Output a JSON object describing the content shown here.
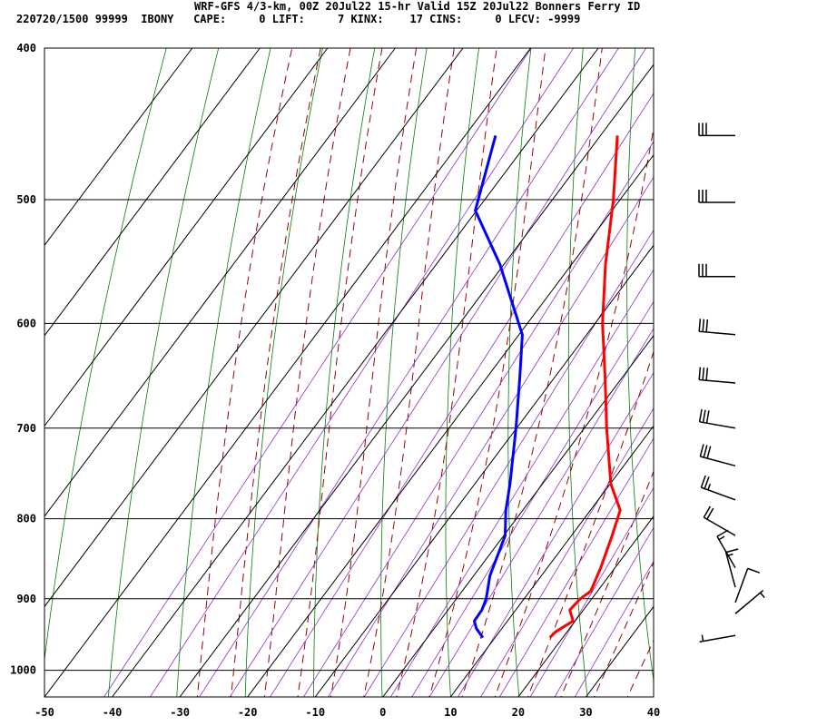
{
  "header": {
    "title": "WRF-GFS 4/3-km, 00Z 20Jul22 15-hr Valid 15Z 20Jul22 Bonners Ferry ID",
    "line2": "220720/1500 99999  IBONY   CAPE:     0 LIFT:     7 KINX:    17 CINS:     0 LFCV: -9999"
  },
  "chart_data": {
    "type": "line",
    "subtype": "skew-T log-P sounding",
    "title": "WRF-GFS 4/3-km, 00Z 20Jul22 15-hr Valid 15Z 20Jul22 Bonners Ferry ID",
    "xlabel": "",
    "ylabel": "",
    "x_axis": {
      "range": [
        -50,
        40
      ],
      "ticks": [
        -50,
        -40,
        -30,
        -20,
        -10,
        0,
        10,
        20,
        30,
        40
      ],
      "units": "deg C (skewed isotherms)"
    },
    "y_axis": {
      "range": [
        400,
        1040
      ],
      "scale": "log",
      "inverted": true,
      "ticks": [
        400,
        500,
        600,
        700,
        800,
        900,
        1000
      ],
      "units": "hPa"
    },
    "grid": true,
    "colors": {
      "temperature": "#ff0000",
      "dewpoint": "#0000ff",
      "grid": "#000000",
      "dry_adiabat": "#008000",
      "moist_adiabat": "#990000",
      "mixing_ratio": "#8f2fcf",
      "barbs": "#000000"
    },
    "series": [
      {
        "name": "Temperature",
        "color": "#ff0000",
        "points": [
          {
            "p": 953,
            "t": 18.1
          },
          {
            "p": 945,
            "t": 18.3
          },
          {
            "p": 930,
            "t": 19.7
          },
          {
            "p": 915,
            "t": 18.0
          },
          {
            "p": 900,
            "t": 18.3
          },
          {
            "p": 890,
            "t": 19.0
          },
          {
            "p": 860,
            "t": 17.9
          },
          {
            "p": 820,
            "t": 16.0
          },
          {
            "p": 790,
            "t": 14.4
          },
          {
            "p": 760,
            "t": 10.1
          },
          {
            "p": 700,
            "t": 3.3
          },
          {
            "p": 650,
            "t": -2.5
          },
          {
            "p": 600,
            "t": -8.9
          },
          {
            "p": 550,
            "t": -15.0
          },
          {
            "p": 500,
            "t": -21.0
          },
          {
            "p": 455,
            "t": -27.5
          }
        ]
      },
      {
        "name": "Dewpoint",
        "color": "#0000ff",
        "points": [
          {
            "p": 953,
            "t": 8.2
          },
          {
            "p": 940,
            "t": 6.2
          },
          {
            "p": 930,
            "t": 5.1
          },
          {
            "p": 915,
            "t": 5.0
          },
          {
            "p": 900,
            "t": 4.4
          },
          {
            "p": 870,
            "t": 2.4
          },
          {
            "p": 820,
            "t": 0.2
          },
          {
            "p": 790,
            "t": -2.5
          },
          {
            "p": 760,
            "t": -4.8
          },
          {
            "p": 700,
            "t": -10.1
          },
          {
            "p": 650,
            "t": -15.1
          },
          {
            "p": 610,
            "t": -19.5
          },
          {
            "p": 550,
            "t": -30.6
          },
          {
            "p": 508,
            "t": -40.2
          },
          {
            "p": 455,
            "t": -45.5
          }
        ]
      }
    ],
    "wind_barbs": [
      {
        "p": 455,
        "dir": 270,
        "spd": 30
      },
      {
        "p": 502,
        "dir": 270,
        "spd": 30
      },
      {
        "p": 560,
        "dir": 270,
        "spd": 30
      },
      {
        "p": 610,
        "dir": 275,
        "spd": 30
      },
      {
        "p": 655,
        "dir": 275,
        "spd": 30
      },
      {
        "p": 700,
        "dir": 280,
        "spd": 30
      },
      {
        "p": 740,
        "dir": 285,
        "spd": 30
      },
      {
        "p": 778,
        "dir": 290,
        "spd": 25
      },
      {
        "p": 820,
        "dir": 300,
        "spd": 20
      },
      {
        "p": 860,
        "dir": 330,
        "spd": 15
      },
      {
        "p": 885,
        "dir": 345,
        "spd": 15
      },
      {
        "p": 905,
        "dir": 20,
        "spd": 10
      },
      {
        "p": 920,
        "dir": 50,
        "spd": 5
      },
      {
        "p": 950,
        "dir": 260,
        "spd": 5
      }
    ]
  }
}
